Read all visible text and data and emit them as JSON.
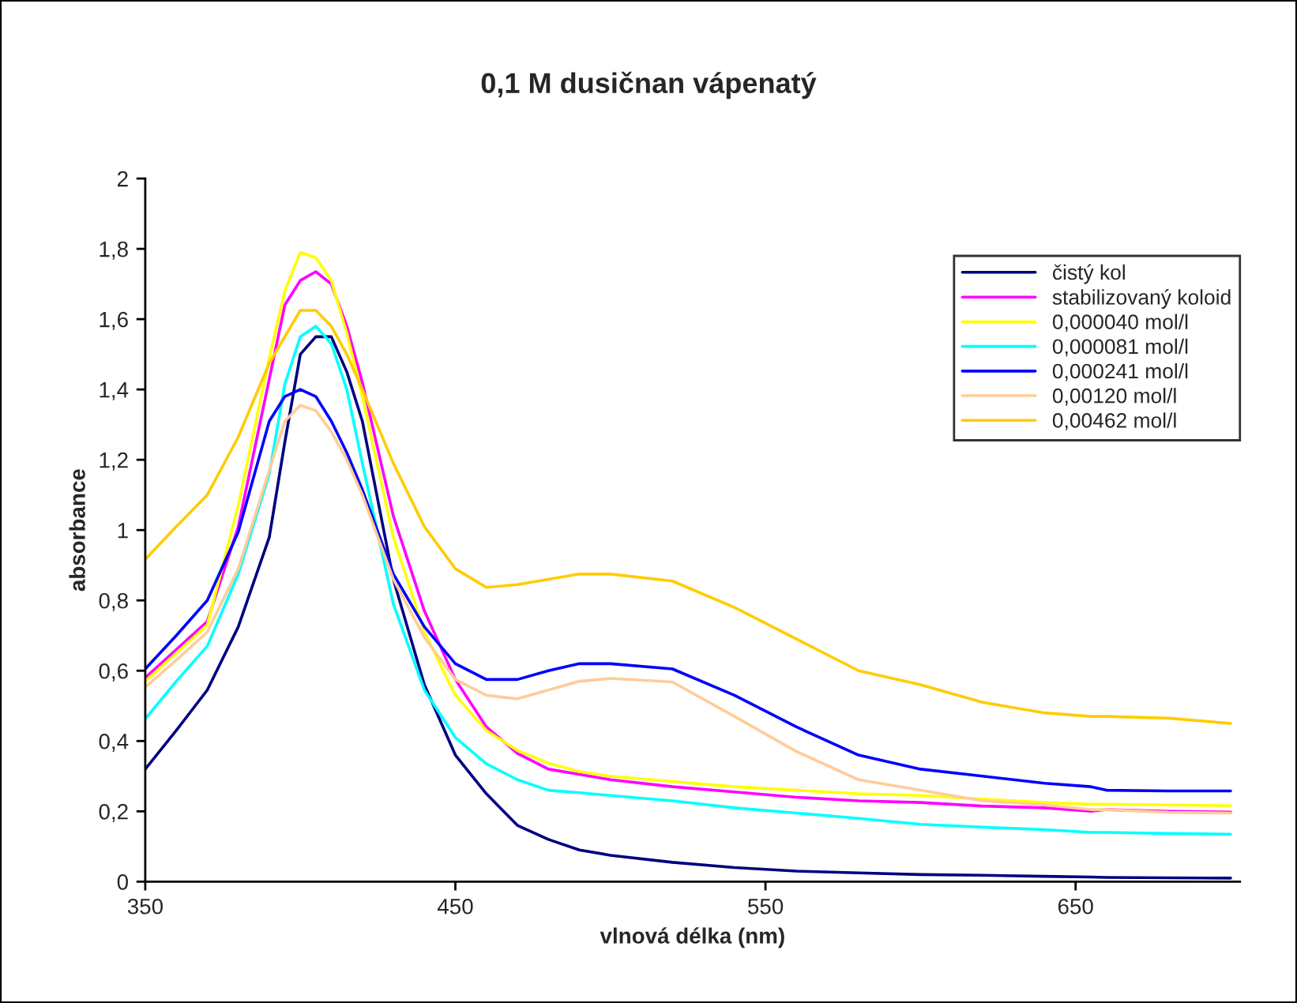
{
  "chart_data": {
    "type": "line",
    "title": "0,1 M dusičnan vápenatý",
    "xlabel": "vlnová délka (nm)",
    "ylabel": "absorbance",
    "x": [
      350,
      360,
      370,
      380,
      390,
      395,
      400,
      405,
      410,
      415,
      420,
      430,
      440,
      450,
      460,
      470,
      480,
      490,
      500,
      520,
      540,
      560,
      580,
      600,
      620,
      640,
      655,
      660,
      680,
      700
    ],
    "series": [
      {
        "name": "čistý kol",
        "color": "#000080",
        "values": [
          0.32,
          0.43,
          0.545,
          0.725,
          0.98,
          1.25,
          1.5,
          1.55,
          1.55,
          1.45,
          1.31,
          0.86,
          0.56,
          0.36,
          0.25,
          0.16,
          0.12,
          0.09,
          0.075,
          0.055,
          0.04,
          0.03,
          0.025,
          0.02,
          0.018,
          0.015,
          0.013,
          0.012,
          0.011,
          0.01
        ]
      },
      {
        "name": "stabilizovaný koloid",
        "color": "#ff00ff",
        "values": [
          0.58,
          0.66,
          0.74,
          1.01,
          1.43,
          1.64,
          1.71,
          1.735,
          1.7,
          1.58,
          1.42,
          1.04,
          0.77,
          0.575,
          0.44,
          0.365,
          0.32,
          0.305,
          0.29,
          0.27,
          0.255,
          0.24,
          0.23,
          0.225,
          0.215,
          0.21,
          0.2,
          0.205,
          0.2,
          0.198
        ]
      },
      {
        "name": "0,000040 mol/l",
        "color": "#ffff00",
        "values": [
          0.57,
          0.65,
          0.73,
          1.07,
          1.49,
          1.68,
          1.79,
          1.775,
          1.71,
          1.56,
          1.38,
          0.98,
          0.71,
          0.53,
          0.43,
          0.373,
          0.337,
          0.313,
          0.3,
          0.285,
          0.27,
          0.26,
          0.25,
          0.245,
          0.235,
          0.225,
          0.22,
          0.22,
          0.218,
          0.216
        ]
      },
      {
        "name": "0,000081 mol/l",
        "color": "#00ffff",
        "values": [
          0.463,
          0.57,
          0.67,
          0.875,
          1.16,
          1.415,
          1.55,
          1.58,
          1.53,
          1.4,
          1.19,
          0.79,
          0.545,
          0.41,
          0.335,
          0.29,
          0.26,
          0.253,
          0.245,
          0.23,
          0.21,
          0.195,
          0.18,
          0.163,
          0.155,
          0.148,
          0.14,
          0.14,
          0.137,
          0.135
        ]
      },
      {
        "name": "0,000241 mol/l",
        "color": "#0000ff",
        "values": [
          0.605,
          0.7,
          0.8,
          0.995,
          1.31,
          1.38,
          1.4,
          1.38,
          1.31,
          1.22,
          1.115,
          0.875,
          0.725,
          0.62,
          0.575,
          0.575,
          0.6,
          0.62,
          0.62,
          0.605,
          0.53,
          0.44,
          0.36,
          0.32,
          0.3,
          0.28,
          0.27,
          0.26,
          0.258,
          0.258
        ]
      },
      {
        "name": "0,00120 mol/l",
        "color": "#ffcc99",
        "values": [
          0.553,
          0.63,
          0.71,
          0.89,
          1.17,
          1.31,
          1.355,
          1.34,
          1.28,
          1.2,
          1.1,
          0.86,
          0.695,
          0.575,
          0.53,
          0.52,
          0.545,
          0.57,
          0.578,
          0.568,
          0.47,
          0.37,
          0.29,
          0.26,
          0.23,
          0.218,
          0.205,
          0.205,
          0.197,
          0.195
        ]
      },
      {
        "name": "0,00462 mol/l",
        "color": "#ffcc00",
        "values": [
          0.917,
          1.01,
          1.1,
          1.265,
          1.475,
          1.55,
          1.625,
          1.625,
          1.58,
          1.5,
          1.4,
          1.19,
          1.01,
          0.89,
          0.837,
          0.845,
          0.86,
          0.875,
          0.875,
          0.855,
          0.78,
          0.69,
          0.6,
          0.56,
          0.51,
          0.48,
          0.47,
          0.47,
          0.465,
          0.45
        ]
      }
    ],
    "xlim": [
      350,
      703
    ],
    "xticks": [
      350,
      450,
      550,
      650
    ],
    "ylim": [
      0,
      2
    ],
    "yticks": [
      0,
      {
        "value": 0.2,
        "label": "0,2"
      },
      {
        "value": 0.4,
        "label": "0,4"
      },
      {
        "value": 0.6,
        "label": "0,6"
      },
      {
        "value": 0.8,
        "label": "0,8"
      },
      1,
      {
        "value": 1.2,
        "label": "1,2"
      },
      {
        "value": 1.4,
        "label": "1,4"
      },
      {
        "value": 1.6,
        "label": "1,6"
      },
      {
        "value": 1.8,
        "label": "1,8"
      },
      2
    ],
    "grid": false,
    "legend": "top right",
    "marker": "none",
    "line_style": "solid"
  }
}
